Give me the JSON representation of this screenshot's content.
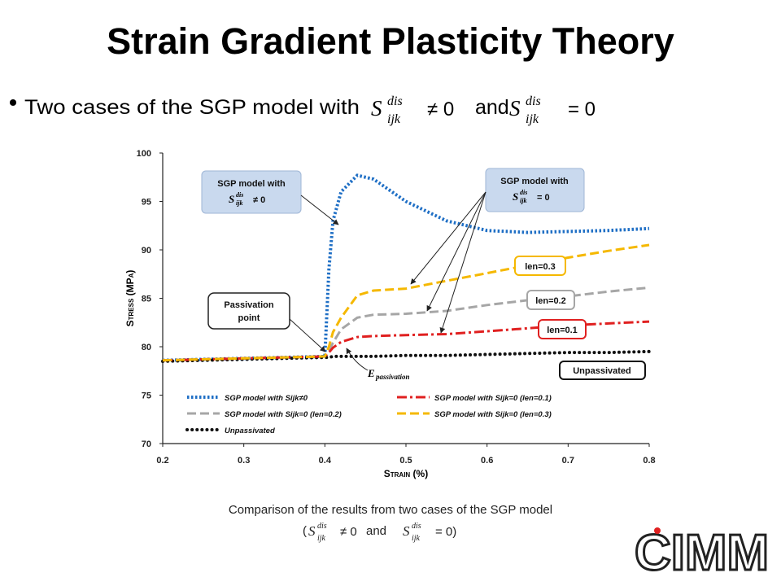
{
  "slide_title": "Strain Gradient Plasticity Theory",
  "bullet": {
    "lead": "Two cases of the SGP model with",
    "s1": {
      "base": "S",
      "sup": "dis",
      "sub": "ijk"
    },
    "rel1": "≠ 0",
    "conj": "and",
    "s2": {
      "base": "S",
      "sup": "dis",
      "sub": "ijk"
    },
    "rel2": "= 0"
  },
  "caption": {
    "line1": "Comparison of the results from two cases of the SGP model",
    "pre": "(",
    "s1": {
      "base": "S",
      "sup": "dis",
      "sub": "ijk"
    },
    "rel1": "≠ 0",
    "conj": "and",
    "s2": {
      "base": "S",
      "sup": "dis",
      "sub": "ijk"
    },
    "rel2": "= 0)"
  },
  "logo": "CIMM",
  "chart_data": {
    "type": "line",
    "xlabel": "Strain (%)",
    "ylabel": "Stress (MPa)",
    "x": [
      0.2,
      0.3,
      0.4,
      0.405,
      0.41,
      0.42,
      0.44,
      0.46,
      0.5,
      0.55,
      0.6,
      0.65,
      0.7,
      0.75,
      0.8
    ],
    "series": [
      {
        "name": "SGP model with Sijk≠0",
        "color": "#1f6fc5",
        "line_style": "dotted",
        "values": [
          78.6,
          78.8,
          79.0,
          88,
          93,
          96,
          97.7,
          97.3,
          95,
          93,
          92,
          91.8,
          91.9,
          92,
          92.2
        ]
      },
      {
        "name": "SGP model with Sijk=0 (len=0.2)",
        "color": "#a6a6a6",
        "line_style": "dashed",
        "values": [
          78.6,
          78.8,
          79.0,
          79.6,
          80.4,
          81.8,
          83,
          83.3,
          83.4,
          83.7,
          84.3,
          84.8,
          85.2,
          85.7,
          86.1
        ]
      },
      {
        "name": "Unpassivated",
        "color": "#111111",
        "line_style": "dots",
        "values": [
          78.5,
          78.7,
          78.9,
          78.9,
          79,
          79,
          79,
          79,
          79.1,
          79.1,
          79.2,
          79.3,
          79.4,
          79.4,
          79.5
        ]
      },
      {
        "name": "SGP model with Sijk=0 (len=0.1)",
        "color": "#e02020",
        "line_style": "dashdot",
        "values": [
          78.6,
          78.8,
          79.0,
          79.4,
          79.9,
          80.5,
          81,
          81.1,
          81.2,
          81.3,
          81.6,
          81.9,
          82.2,
          82.4,
          82.6
        ]
      },
      {
        "name": "SGP model with Sijk=0 (len=0.3)",
        "color": "#f5b800",
        "line_style": "dashed",
        "values": [
          78.6,
          78.8,
          79.0,
          80,
          81.5,
          83,
          85.3,
          85.8,
          86,
          86.8,
          87.6,
          88.4,
          89.2,
          89.9,
          90.5
        ]
      }
    ],
    "xlim": [
      0.2,
      0.8
    ],
    "xticks": [
      0.2,
      0.3,
      0.4,
      0.5,
      0.6,
      0.7,
      0.8
    ],
    "ylim": [
      70,
      100
    ],
    "yticks": [
      70,
      75,
      80,
      85,
      90,
      95,
      100
    ],
    "grid": false,
    "legend": "lower left",
    "annotations": {
      "nonzero": {
        "text": "SGP model with",
        "base": "S",
        "sup": "dis",
        "sub": "ijk",
        "rel": "≠ 0"
      },
      "zero": {
        "text": "SGP model with",
        "base": "S",
        "sup": "dis",
        "sub": "ijk",
        "rel": "= 0"
      },
      "passivation": [
        "Passivation",
        "point"
      ],
      "len03": "len=0.3",
      "len02": "len=0.2",
      "len01": "len=0.1",
      "unpassivated": "Unpassivated",
      "epass": {
        "base": "E",
        "sub": "passivation"
      }
    }
  }
}
